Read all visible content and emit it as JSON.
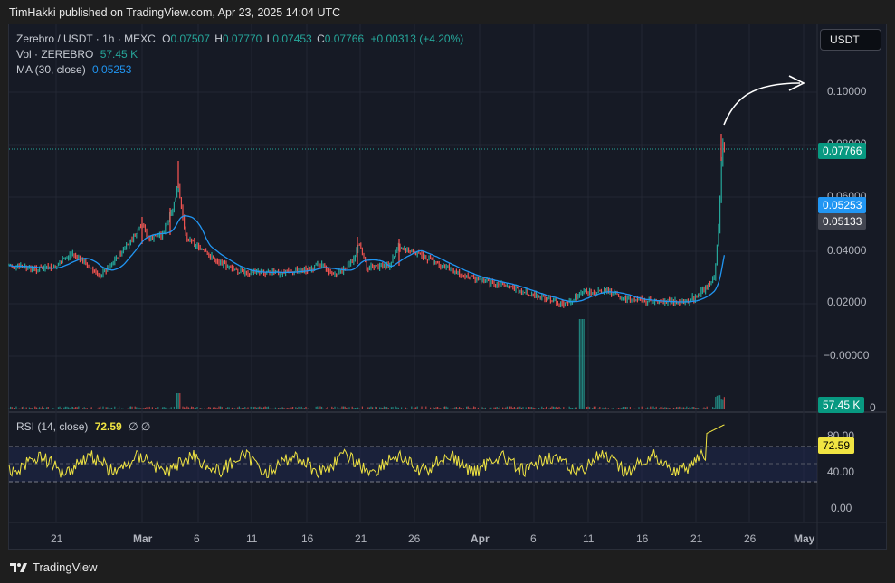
{
  "header": {
    "published": "TimHakki published on TradingView.com, Apr 23, 2025 14:04 UTC"
  },
  "legend": {
    "symbol": "Zerebro / USDT · 1h · MEXC",
    "o_label": "O",
    "o": "0.07507",
    "h_label": "H",
    "h": "0.07770",
    "l_label": "L",
    "l": "0.07453",
    "c_label": "C",
    "c": "0.07766",
    "change": "+0.00313 (+4.20%)",
    "vol_label": "Vol · ZEREBRO",
    "vol": "57.45 K",
    "ma_label": "MA (30, close)",
    "ma": "0.05253",
    "rsi_label": "RSI (14, close)",
    "rsi": "72.59",
    "rsi_icons": "∅ ∅"
  },
  "currency_button": "USDT",
  "price_axis": [
    "0.10000",
    "0.08000",
    "0.06000",
    "0.04000",
    "0.02000",
    "−0.00000"
  ],
  "volume_axis_tick": "0",
  "price_labels": {
    "last": "0.07766",
    "ma": "0.05253",
    "other": "0.05133",
    "volume": "57.45 K",
    "rsi": "72.59"
  },
  "rsi_axis": [
    "80.00",
    "40.00",
    "0.00"
  ],
  "time_axis": [
    "21",
    "Mar",
    "6",
    "11",
    "16",
    "21",
    "26",
    "Apr",
    "6",
    "11",
    "16",
    "21",
    "26",
    "May"
  ],
  "colors": {
    "up": "#26a69a",
    "down": "#ef5350",
    "ma": "#2196f3",
    "rsi": "#f0e442",
    "background": "#161a25"
  },
  "footer": {
    "brand": "TradingView",
    "logo_icon": "tradingview-logo-icon"
  }
}
